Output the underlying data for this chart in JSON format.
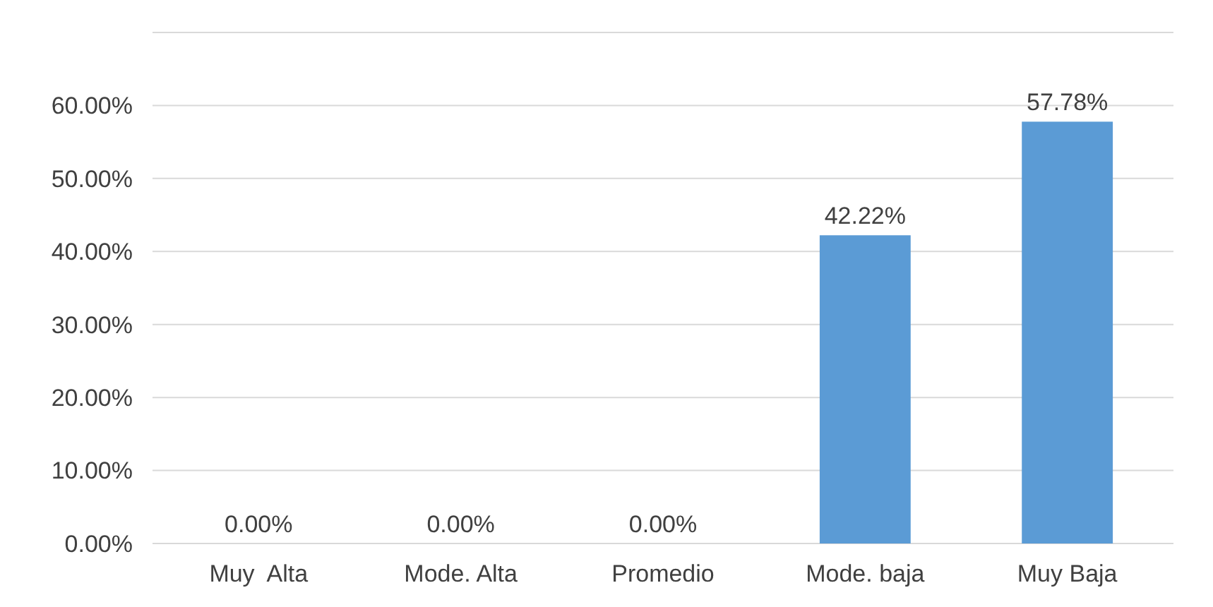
{
  "chart_data": {
    "type": "bar",
    "categories": [
      "Muy  Alta",
      "Mode. Alta",
      "Promedio",
      "Mode. baja",
      "Muy Baja"
    ],
    "values": [
      0,
      0,
      0,
      42.22,
      57.78
    ],
    "value_labels": [
      "0.00%",
      "0.00%",
      "0.00%",
      "42.22%",
      "57.78%"
    ],
    "color": "#5b9bd5",
    "ylim": [
      0,
      70
    ],
    "yticks": [
      {
        "value": 0,
        "label": "0.00%"
      },
      {
        "value": 10,
        "label": "10.00%"
      },
      {
        "value": 20,
        "label": "20.00%"
      },
      {
        "value": 30,
        "label": "30.00%"
      },
      {
        "value": 40,
        "label": "40.00%"
      },
      {
        "value": 50,
        "label": "50.00%"
      },
      {
        "value": 60,
        "label": "60.00%"
      },
      {
        "value": 70,
        "label": null
      }
    ],
    "grid": "y"
  }
}
